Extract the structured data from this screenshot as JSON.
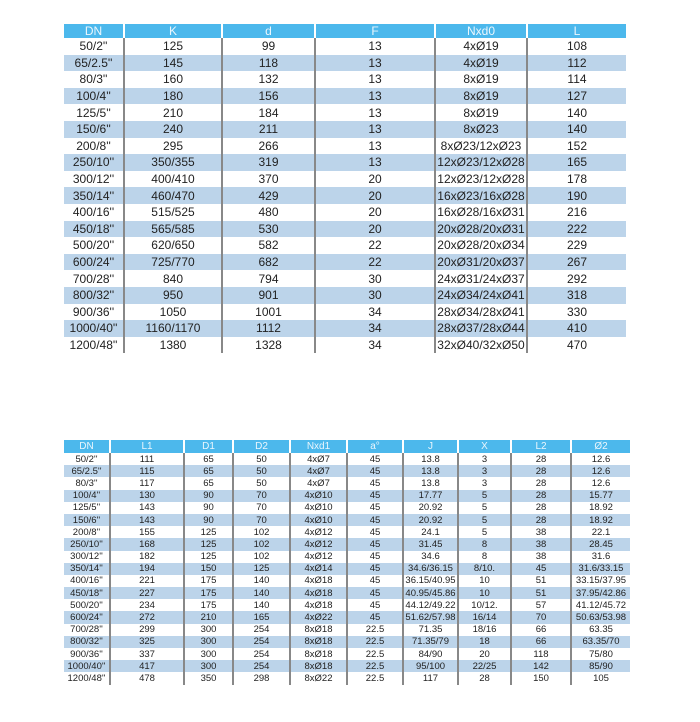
{
  "table1": {
    "headers": [
      "DN",
      "K",
      "d",
      "F",
      "Nxd0",
      "L"
    ],
    "rows": [
      [
        "50/2''",
        "125",
        "99",
        "13",
        "4xØ19",
        "108"
      ],
      [
        "65/2.5''",
        "145",
        "118",
        "13",
        "4xØ19",
        "112"
      ],
      [
        "80/3''",
        "160",
        "132",
        "13",
        "8xØ19",
        "114"
      ],
      [
        "100/4''",
        "180",
        "156",
        "13",
        "8xØ19",
        "127"
      ],
      [
        "125/5''",
        "210",
        "184",
        "13",
        "8xØ19",
        "140"
      ],
      [
        "150/6''",
        "240",
        "211",
        "13",
        "8xØ23",
        "140"
      ],
      [
        "200/8''",
        "295",
        "266",
        "13",
        "8xØ23/12xØ23",
        "152"
      ],
      [
        "250/10''",
        "350/355",
        "319",
        "13",
        "12xØ23/12xØ28",
        "165"
      ],
      [
        "300/12''",
        "400/410",
        "370",
        "20",
        "12xØ23/12xØ28",
        "178"
      ],
      [
        "350/14''",
        "460/470",
        "429",
        "20",
        "16xØ23/16xØ28",
        "190"
      ],
      [
        "400/16''",
        "515/525",
        "480",
        "20",
        "16xØ28/16xØ31",
        "216"
      ],
      [
        "450/18''",
        "565/585",
        "530",
        "20",
        "20xØ28/20xØ31",
        "222"
      ],
      [
        "500/20''",
        "620/650",
        "582",
        "22",
        "20xØ28/20xØ34",
        "229"
      ],
      [
        "600/24''",
        "725/770",
        "682",
        "22",
        "20xØ31/20xØ37",
        "267"
      ],
      [
        "700/28''",
        "840",
        "794",
        "30",
        "24xØ31/24xØ37",
        "292"
      ],
      [
        "800/32''",
        "950",
        "901",
        "30",
        "24xØ34/24xØ41",
        "318"
      ],
      [
        "900/36''",
        "1050",
        "1001",
        "34",
        "28xØ34/28xØ41",
        "330"
      ],
      [
        "1000/40''",
        "1160/1170",
        "1112",
        "34",
        "28xØ37/28xØ44",
        "410"
      ],
      [
        "1200/48''",
        "1380",
        "1328",
        "34",
        "32xØ40/32xØ50",
        "470"
      ]
    ]
  },
  "table2": {
    "headers": [
      "DN",
      "L1",
      "D1",
      "D2",
      "Nxd1",
      "a°",
      "J",
      "X",
      "L2",
      "Ø2"
    ],
    "rows": [
      [
        "50/2''",
        "111",
        "65",
        "50",
        "4xØ7",
        "45",
        "13.8",
        "3",
        "28",
        "12.6"
      ],
      [
        "65/2.5''",
        "115",
        "65",
        "50",
        "4xØ7",
        "45",
        "13.8",
        "3",
        "28",
        "12.6"
      ],
      [
        "80/3''",
        "117",
        "65",
        "50",
        "4xØ7",
        "45",
        "13.8",
        "3",
        "28",
        "12.6"
      ],
      [
        "100/4''",
        "130",
        "90",
        "70",
        "4xØ10",
        "45",
        "17.77",
        "5",
        "28",
        "15.77"
      ],
      [
        "125/5''",
        "143",
        "90",
        "70",
        "4xØ10",
        "45",
        "20.92",
        "5",
        "28",
        "18.92"
      ],
      [
        "150/6''",
        "143",
        "90",
        "70",
        "4xØ10",
        "45",
        "20.92",
        "5",
        "28",
        "18.92"
      ],
      [
        "200/8''",
        "155",
        "125",
        "102",
        "4xØ12",
        "45",
        "24.1",
        "5",
        "38",
        "22.1"
      ],
      [
        "250/10''",
        "168",
        "125",
        "102",
        "4xØ12",
        "45",
        "31.45",
        "8",
        "38",
        "28.45"
      ],
      [
        "300/12''",
        "182",
        "125",
        "102",
        "4xØ12",
        "45",
        "34.6",
        "8",
        "38",
        "31.6"
      ],
      [
        "350/14''",
        "194",
        "150",
        "125",
        "4xØ14",
        "45",
        "34.6/36.15",
        "8/10.",
        "45",
        "31.6/33.15"
      ],
      [
        "400/16''",
        "221",
        "175",
        "140",
        "4xØ18",
        "45",
        "36.15/40.95",
        "10",
        "51",
        "33.15/37.95"
      ],
      [
        "450/18''",
        "227",
        "175",
        "140",
        "4xØ18",
        "45",
        "40.95/45.86",
        "10",
        "51",
        "37.95/42.86"
      ],
      [
        "500/20''",
        "234",
        "175",
        "140",
        "4xØ18",
        "45",
        "44.12/49.22",
        "10/12.",
        "57",
        "41.12/45.72"
      ],
      [
        "600/24''",
        "272",
        "210",
        "165",
        "4xØ22",
        "45",
        "51.62/57.98",
        "16/14",
        "70",
        "50.63/53.98"
      ],
      [
        "700/28''",
        "299",
        "300",
        "254",
        "8xØ18",
        "22.5",
        "71.35",
        "18/16",
        "66",
        "63.35"
      ],
      [
        "800/32''",
        "325",
        "300",
        "254",
        "8xØ18",
        "22.5",
        "71.35/79",
        "18",
        "66",
        "63.35/70"
      ],
      [
        "900/36''",
        "337",
        "300",
        "254",
        "8xØ18",
        "22.5",
        "84/90",
        "20",
        "118",
        "75/80"
      ],
      [
        "1000/40''",
        "417",
        "300",
        "254",
        "8xØ18",
        "22.5",
        "95/100",
        "22/25",
        "142",
        "85/90"
      ],
      [
        "1200/48''",
        "478",
        "350",
        "298",
        "8xØ22",
        "22.5",
        "117",
        "28",
        "150",
        "105"
      ]
    ]
  }
}
